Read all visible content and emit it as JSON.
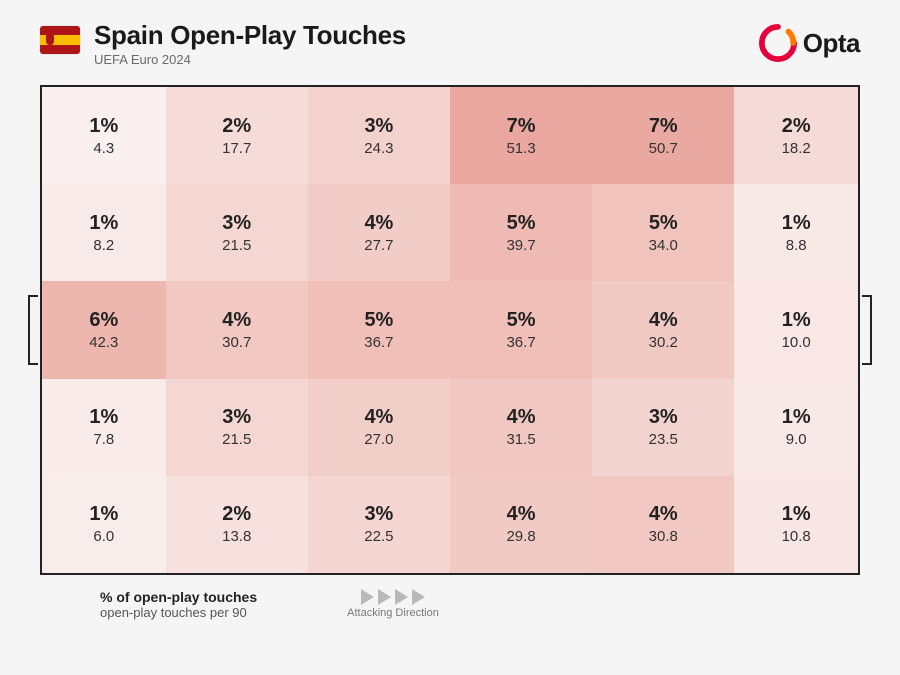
{
  "header": {
    "title": "Spain Open-Play Touches",
    "subtitle": "UEFA Euro 2024",
    "flag": {
      "top_color": "#ad1519",
      "mid_color": "#fabd00",
      "bottom_color": "#ad1519"
    },
    "brand_text": "Opta",
    "brand_arc_outer": "#e4003a",
    "brand_arc_inner": "#ff7a00"
  },
  "legend": {
    "line1": "% of open-play touches",
    "line2": "open-play touches per 90",
    "direction_label": "Attacking Direction",
    "arrow_color": "#b9b9b9"
  },
  "pitch": {
    "type": "heatmap",
    "rows": 5,
    "cols": 6,
    "col_fractions": [
      1,
      1.15,
      1.15,
      1.15,
      1.15,
      1
    ],
    "border_color": "#222222",
    "marking_color_rgba": "rgba(0,0,0,0.25)",
    "base_fill": "#ffffff",
    "max_fill": "#e58b8b",
    "pct_fontsize": 20,
    "val_fontsize": 15,
    "cells": [
      [
        {
          "pct": "1%",
          "val": "4.3",
          "fill": "#faf0ef"
        },
        {
          "pct": "2%",
          "val": "17.7",
          "fill": "#f5dcd9"
        },
        {
          "pct": "3%",
          "val": "24.3",
          "fill": "#f3d2ce"
        },
        {
          "pct": "7%",
          "val": "51.3",
          "fill": "#e9a79f"
        },
        {
          "pct": "7%",
          "val": "50.7",
          "fill": "#e9a8a0"
        },
        {
          "pct": "2%",
          "val": "18.2",
          "fill": "#f5dbd8"
        }
      ],
      [
        {
          "pct": "1%",
          "val": "8.2",
          "fill": "#f8eae8"
        },
        {
          "pct": "3%",
          "val": "21.5",
          "fill": "#f4d6d2"
        },
        {
          "pct": "4%",
          "val": "27.7",
          "fill": "#f2cdc8"
        },
        {
          "pct": "5%",
          "val": "39.7",
          "fill": "#eebab3"
        },
        {
          "pct": "5%",
          "val": "34.0",
          "fill": "#f0c3bd"
        },
        {
          "pct": "1%",
          "val": "8.8",
          "fill": "#f8e9e7"
        }
      ],
      [
        {
          "pct": "6%",
          "val": "42.3",
          "fill": "#edb6af"
        },
        {
          "pct": "4%",
          "val": "30.7",
          "fill": "#f1c8c2"
        },
        {
          "pct": "5%",
          "val": "36.7",
          "fill": "#efbfb8"
        },
        {
          "pct": "5%",
          "val": "36.7",
          "fill": "#efbfb8"
        },
        {
          "pct": "4%",
          "val": "30.2",
          "fill": "#f1c9c3"
        },
        {
          "pct": "1%",
          "val": "10.0",
          "fill": "#f8e7e5"
        }
      ],
      [
        {
          "pct": "1%",
          "val": "7.8",
          "fill": "#f8ebe9"
        },
        {
          "pct": "3%",
          "val": "21.5",
          "fill": "#f4d6d2"
        },
        {
          "pct": "4%",
          "val": "27.0",
          "fill": "#f2cec9"
        },
        {
          "pct": "4%",
          "val": "31.5",
          "fill": "#f1c7c1"
        },
        {
          "pct": "3%",
          "val": "23.5",
          "fill": "#f3d3cf"
        },
        {
          "pct": "1%",
          "val": "9.0",
          "fill": "#f8e9e7"
        }
      ],
      [
        {
          "pct": "1%",
          "val": "6.0",
          "fill": "#f9edeb"
        },
        {
          "pct": "2%",
          "val": "13.8",
          "fill": "#f6e1de"
        },
        {
          "pct": "3%",
          "val": "22.5",
          "fill": "#f4d5d1"
        },
        {
          "pct": "4%",
          "val": "29.8",
          "fill": "#f1cac4"
        },
        {
          "pct": "4%",
          "val": "30.8",
          "fill": "#f1c8c2"
        },
        {
          "pct": "1%",
          "val": "10.8",
          "fill": "#f7e6e4"
        }
      ]
    ]
  }
}
